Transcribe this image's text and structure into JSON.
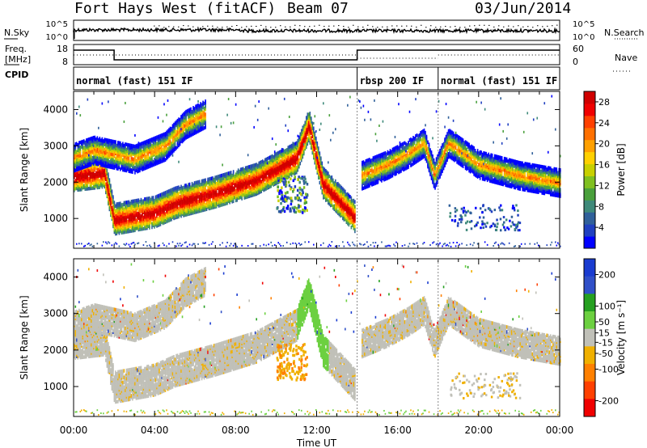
{
  "header": {
    "radar": "Fort Hays West (fitACF)",
    "beam": "Beam 07",
    "date": "03/Jun/2014"
  },
  "top_panels": {
    "nsky_label": "N.Sky",
    "nsearch_label": "N.Search",
    "freq_label_top": "Freq.",
    "freq_label_bottom": "[MHz]",
    "nave_label": "Nave",
    "cpid_label": "CPID",
    "noise_left_ticks": [
      "10^5",
      "10^0"
    ],
    "noise_right_ticks": [
      "10^5",
      "10^0"
    ],
    "freq_left_ticks": [
      "18",
      "8"
    ],
    "nave_right_ticks": [
      "60",
      "0"
    ]
  },
  "cpid": [
    {
      "start": 0,
      "end": 14,
      "label": "normal (fast) 151 IF"
    },
    {
      "start": 14,
      "end": 18,
      "label": "rbsp 200 IF"
    },
    {
      "start": 18,
      "end": 24,
      "label": "normal (fast) 151 IF"
    }
  ],
  "colors": {
    "grey": "#c0c0b8",
    "power_scale": [
      "#0000ff",
      "#2040c0",
      "#30609a",
      "#3f8a7a",
      "#4aa03c",
      "#80c020",
      "#c8d000",
      "#ffd000",
      "#ffa000",
      "#ff7000",
      "#ff4000",
      "#f00000",
      "#d00000"
    ],
    "velocity_scale": [
      "#1a3cd0",
      "#3050c8",
      "#25a020",
      "#6cd040",
      "#c0c0b8",
      "#f0b000",
      "#ff8000",
      "#ff4000",
      "#f00000"
    ]
  },
  "chart_data": [
    {
      "type": "heatmap",
      "title": "Power",
      "xlabel": "Time UT",
      "ylabel": "Slant Range [km]",
      "x_ticks": [
        "00:00",
        "04:00",
        "08:00",
        "12:00",
        "16:00",
        "20:00",
        "00:00"
      ],
      "xlim_hours": [
        0,
        24
      ],
      "y_ticks": [
        1000,
        2000,
        3000,
        4000
      ],
      "ylim_km": [
        180,
        4500
      ],
      "colorbar_label": "Power [dB]",
      "colorbar_ticks": [
        4,
        8,
        12,
        16,
        20,
        24,
        28
      ],
      "colorbar_range": [
        0,
        30
      ],
      "bands": [
        {
          "name": "main echo",
          "points": [
            [
              0,
              2200
            ],
            [
              1.5,
              2300
            ],
            [
              2,
              1000
            ],
            [
              4,
              1200
            ],
            [
              5,
              1450
            ],
            [
              7,
              1750
            ],
            [
              9,
              2100
            ],
            [
              11,
              2700
            ],
            [
              11.6,
              3600
            ],
            [
              12.3,
              2000
            ],
            [
              13.9,
              1050
            ]
          ]
        },
        {
          "name": "upper echo",
          "points": [
            [
              0,
              2700
            ],
            [
              1,
              2900
            ],
            [
              3,
              2650
            ],
            [
              4.5,
              3000
            ],
            [
              5.5,
              3600
            ],
            [
              6.5,
              3900
            ]
          ]
        },
        {
          "name": "evening echo",
          "points": [
            [
              14.2,
              2200
            ],
            [
              15.5,
              2500
            ],
            [
              16.5,
              2800
            ],
            [
              17.3,
              3100
            ],
            [
              17.8,
              2200
            ],
            [
              18.5,
              3100
            ],
            [
              20,
              2500
            ],
            [
              22,
              2200
            ],
            [
              24,
              2000
            ]
          ]
        }
      ]
    },
    {
      "type": "heatmap",
      "title": "Velocity",
      "xlabel": "Time UT",
      "ylabel": "Slant Range [km]",
      "x_ticks": [
        "00:00",
        "04:00",
        "08:00",
        "12:00",
        "16:00",
        "20:00",
        "00:00"
      ],
      "xlim_hours": [
        0,
        24
      ],
      "y_ticks": [
        1000,
        2000,
        3000,
        4000
      ],
      "ylim_km": [
        180,
        4500
      ],
      "colorbar_label": "Velocity [m s⁻¹]",
      "colorbar_ticks": [
        200,
        100,
        50,
        15,
        -15,
        -50,
        -100,
        -200
      ],
      "colorbar_range": [
        -250,
        250
      ]
    }
  ],
  "x_axis_title": "Time UT"
}
